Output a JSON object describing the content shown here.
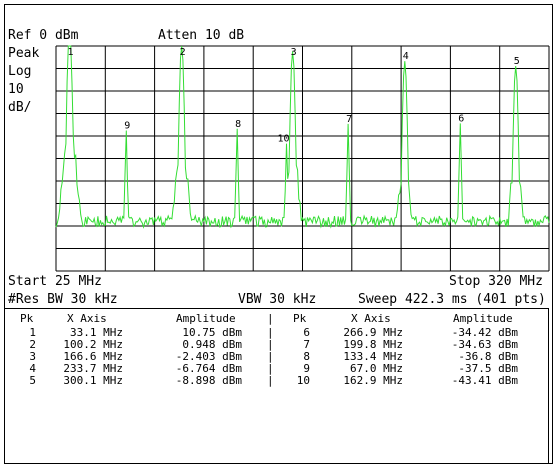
{
  "header": {
    "ref_level": "Ref 0 dBm",
    "attenuation": "Atten 10 dB"
  },
  "side_labels": {
    "detector": "Peak",
    "scale_type": "Log",
    "scale_value": "10",
    "scale_unit": "dB/"
  },
  "footer": {
    "start": "Start 25 MHz",
    "stop": "Stop 320 MHz",
    "res_bw": "#Res BW 30 kHz",
    "vbw": "VBW 30 kHz",
    "sweep": "Sweep 422.3 ms (401 pts)"
  },
  "colors": {
    "trace": "#33dd33",
    "grid": "#000000",
    "background": "#ffffff"
  },
  "chart_data": {
    "type": "line",
    "x_range_mhz": [
      25,
      320
    ],
    "y_range_dbm": [
      -100,
      0
    ],
    "divisions_x": 10,
    "divisions_y": 10,
    "grid": true,
    "noise_floor_dbm": -78,
    "peaks": [
      {
        "label": "1",
        "x_mhz": 33.1,
        "amplitude_dbm": 10.75
      },
      {
        "label": "2",
        "x_mhz": 100.2,
        "amplitude_dbm": 0.948
      },
      {
        "label": "3",
        "x_mhz": 166.6,
        "amplitude_dbm": -2.403
      },
      {
        "label": "4",
        "x_mhz": 233.7,
        "amplitude_dbm": -6.764
      },
      {
        "label": "5",
        "x_mhz": 300.1,
        "amplitude_dbm": -8.898
      },
      {
        "label": "6",
        "x_mhz": 266.9,
        "amplitude_dbm": -34.42
      },
      {
        "label": "7",
        "x_mhz": 199.8,
        "amplitude_dbm": -34.63
      },
      {
        "label": "8",
        "x_mhz": 133.4,
        "amplitude_dbm": -36.8
      },
      {
        "label": "9",
        "x_mhz": 67.0,
        "amplitude_dbm": -37.5
      },
      {
        "label": "10",
        "x_mhz": 162.9,
        "amplitude_dbm": -43.41
      }
    ]
  },
  "peak_table": {
    "headers": {
      "pk": "Pk",
      "x_axis": "X Axis",
      "amplitude": "Amplitude",
      "separator": "|"
    },
    "left_rows": [
      {
        "pk": "1",
        "x": "33.1 MHz",
        "amp": "10.75 dBm"
      },
      {
        "pk": "2",
        "x": "100.2 MHz",
        "amp": "0.948 dBm"
      },
      {
        "pk": "3",
        "x": "166.6 MHz",
        "amp": "-2.403 dBm"
      },
      {
        "pk": "4",
        "x": "233.7 MHz",
        "amp": "-6.764 dBm"
      },
      {
        "pk": "5",
        "x": "300.1 MHz",
        "amp": "-8.898 dBm"
      }
    ],
    "right_rows": [
      {
        "pk": "6",
        "x": "266.9 MHz",
        "amp": "-34.42 dBm"
      },
      {
        "pk": "7",
        "x": "199.8 MHz",
        "amp": "-34.63 dBm"
      },
      {
        "pk": "8",
        "x": "133.4 MHz",
        "amp": "-36.8 dBm"
      },
      {
        "pk": "9",
        "x": "67.0 MHz",
        "amp": "-37.5 dBm"
      },
      {
        "pk": "10",
        "x": "162.9 MHz",
        "amp": "-43.41 dBm"
      }
    ]
  }
}
